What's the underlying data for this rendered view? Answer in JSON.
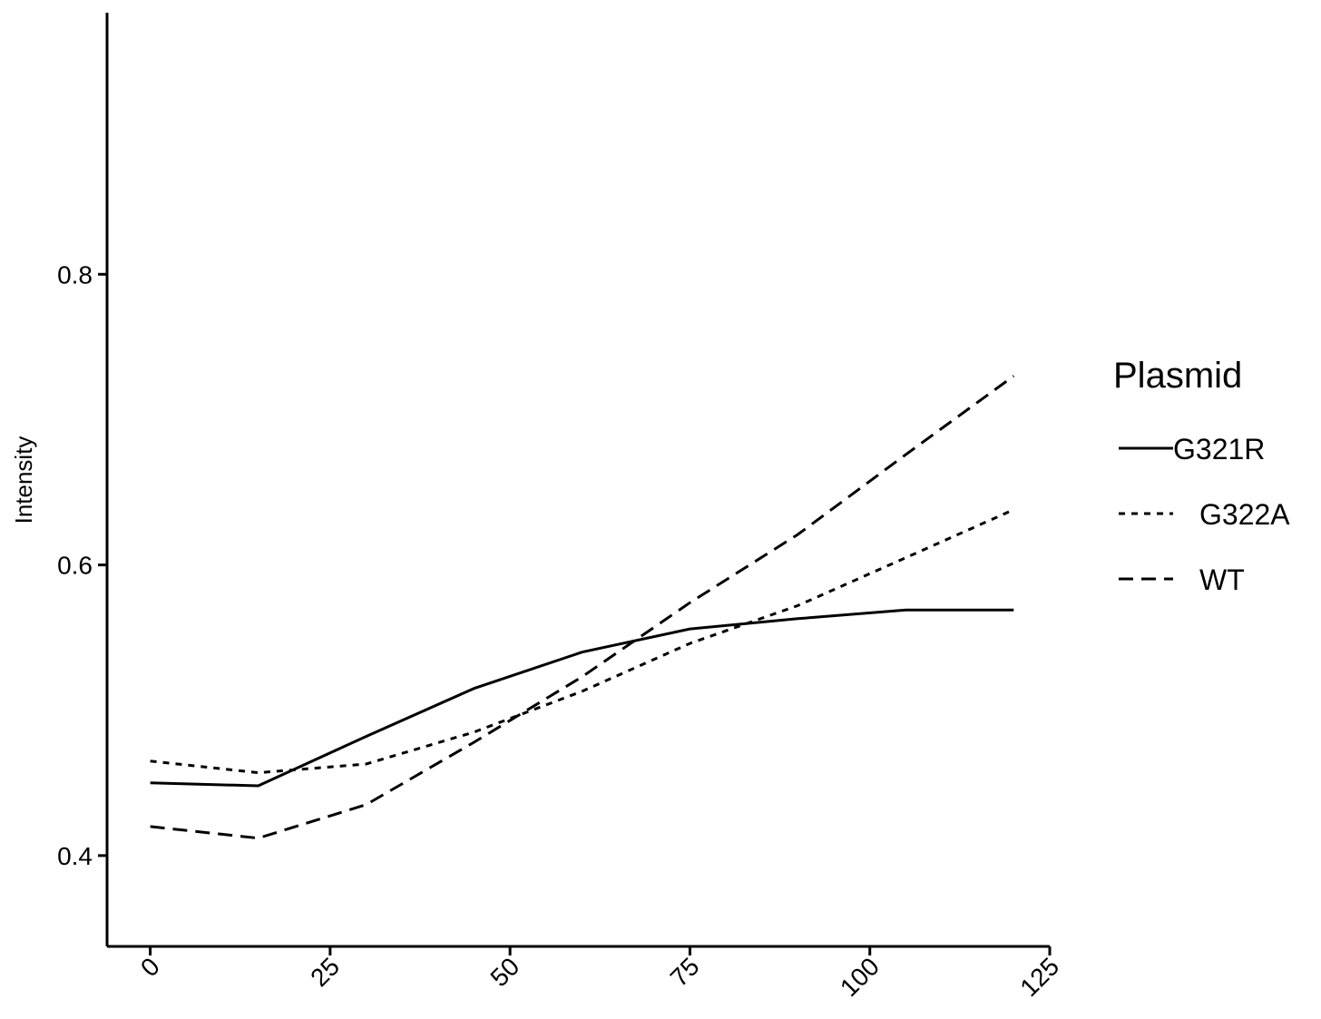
{
  "chart_data": {
    "type": "line",
    "xlabel": "",
    "ylabel": "Intensity",
    "xlim": [
      -6,
      125
    ],
    "ylim": [
      0.3375,
      0.98
    ],
    "x_ticks": [
      0,
      25,
      50,
      75,
      100,
      125
    ],
    "x_tick_labels": [
      "0",
      "25",
      "50",
      "75",
      "100",
      "125"
    ],
    "y_ticks": [
      0.4,
      0.6,
      0.8
    ],
    "y_tick_labels": [
      "0.4",
      "0.6",
      "0.8"
    ],
    "grid": false,
    "legend": {
      "title": "Plasmid",
      "placement": "right"
    },
    "series": [
      {
        "name": "G321R",
        "dash": "solid",
        "x": [
          0,
          15,
          30,
          45,
          60,
          75,
          90,
          105,
          120
        ],
        "y": [
          0.45,
          0.448,
          0.482,
          0.515,
          0.54,
          0.556,
          0.563,
          0.569,
          0.569
        ]
      },
      {
        "name": "G322A",
        "dash": "dotted",
        "x": [
          0,
          15,
          30,
          45,
          60,
          75,
          90,
          105,
          120
        ],
        "y": [
          0.465,
          0.457,
          0.463,
          0.485,
          0.513,
          0.546,
          0.572,
          0.605,
          0.638
        ]
      },
      {
        "name": "WT",
        "dash": "dashed",
        "x": [
          0,
          15,
          30,
          45,
          60,
          75,
          90,
          105,
          120
        ],
        "y": [
          0.42,
          0.412,
          0.435,
          0.478,
          0.523,
          0.574,
          0.621,
          0.676,
          0.73
        ]
      }
    ]
  }
}
